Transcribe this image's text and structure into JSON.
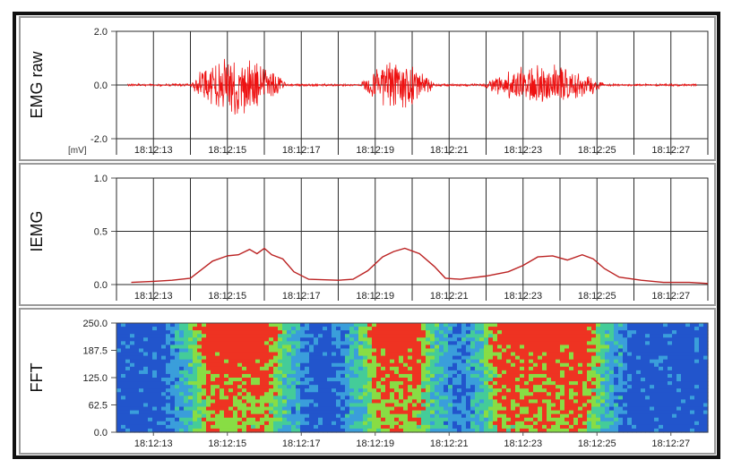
{
  "chart_data": [
    {
      "type": "line",
      "ylabel": "EMG raw",
      "unit_label": "[mV]",
      "ylim": [
        -2.0,
        2.0
      ],
      "yticks": [
        -2.0,
        0.0,
        2.0
      ],
      "y_tick_labels": [
        "-2.0",
        "0.0",
        "2.0"
      ],
      "xlim": [
        "18:12:12",
        "18:12:28"
      ],
      "x_tick_labels": [
        "18:12:13",
        "18:12:15",
        "18:12:17",
        "18:12:19",
        "18:12:21",
        "18:12:23",
        "18:12:25",
        "18:12:27"
      ],
      "grid": true,
      "series_color": "#ee1111",
      "series": [
        {
          "baseline_amplitude": 0.05,
          "bursts": [
            {
              "start": "18:12:14.0",
              "end": "18:12:16.6",
              "peak_amplitude": 1.2
            },
            {
              "start": "18:12:18.6",
              "end": "18:12:20.6",
              "peak_amplitude": 1.0
            },
            {
              "start": "18:12:21.9",
              "end": "18:12:25.2",
              "peak_amplitude": 0.85
            }
          ]
        }
      ]
    },
    {
      "type": "line",
      "ylabel": "IEMG",
      "ylim": [
        0.0,
        1.0
      ],
      "yticks": [
        0.0,
        0.5,
        1.0
      ],
      "y_tick_labels": [
        "0.0",
        "0.5",
        "1.0"
      ],
      "xlim": [
        "18:12:12",
        "18:12:28"
      ],
      "x_tick_labels": [
        "18:12:13",
        "18:12:15",
        "18:12:17",
        "18:12:19",
        "18:12:21",
        "18:12:23",
        "18:12:25",
        "18:12:27"
      ],
      "grid": true,
      "series_color": "#bb2222",
      "series": [
        {
          "x": [
            "18:12:12.4",
            "18:12:13.0",
            "18:12:13.5",
            "18:12:14.0",
            "18:12:14.3",
            "18:12:14.6",
            "18:12:15.0",
            "18:12:15.3",
            "18:12:15.6",
            "18:12:15.8",
            "18:12:16.0",
            "18:12:16.2",
            "18:12:16.5",
            "18:12:16.8",
            "18:12:17.2",
            "18:12:18.0",
            "18:12:18.4",
            "18:12:18.8",
            "18:12:19.2",
            "18:12:19.5",
            "18:12:19.8",
            "18:12:20.2",
            "18:12:20.6",
            "18:12:20.9",
            "18:12:21.3",
            "18:12:22.0",
            "18:12:22.6",
            "18:12:23.0",
            "18:12:23.4",
            "18:12:23.8",
            "18:12:24.2",
            "18:12:24.6",
            "18:12:24.9",
            "18:12:25.2",
            "18:12:25.6",
            "18:12:26.2",
            "18:12:26.8",
            "18:12:27.5",
            "18:12:28.0"
          ],
          "y": [
            0.02,
            0.03,
            0.04,
            0.06,
            0.14,
            0.22,
            0.27,
            0.28,
            0.33,
            0.29,
            0.34,
            0.28,
            0.24,
            0.12,
            0.05,
            0.04,
            0.05,
            0.13,
            0.26,
            0.31,
            0.34,
            0.29,
            0.17,
            0.06,
            0.05,
            0.08,
            0.12,
            0.18,
            0.26,
            0.27,
            0.23,
            0.28,
            0.24,
            0.15,
            0.07,
            0.04,
            0.02,
            0.02,
            0.01
          ]
        }
      ]
    },
    {
      "type": "heatmap",
      "ylabel": "FFT",
      "ylim": [
        0.0,
        250.0
      ],
      "yticks": [
        0.0,
        62.5,
        125.0,
        187.5,
        250.0
      ],
      "y_tick_labels": [
        "0.0",
        "62.5",
        "125.0",
        "187.5",
        "250.0"
      ],
      "xlim": [
        "18:12:12",
        "18:12:28"
      ],
      "x_tick_labels": [
        "18:12:13",
        "18:12:15",
        "18:12:17",
        "18:12:19",
        "18:12:21",
        "18:12:23",
        "18:12:25",
        "18:12:27"
      ],
      "colormap": [
        "#2255cc",
        "#3a9edb",
        "#44cc99",
        "#88dd44",
        "#ee3322"
      ],
      "high_intensity_bands": [
        {
          "start": "18:12:14.0",
          "end": "18:12:16.6",
          "freq_range": [
            0,
            250
          ]
        },
        {
          "start": "18:12:18.6",
          "end": "18:12:20.6",
          "freq_range": [
            0,
            250
          ]
        },
        {
          "start": "18:12:21.9",
          "end": "18:12:25.2",
          "freq_range": [
            0,
            250
          ]
        }
      ]
    }
  ]
}
